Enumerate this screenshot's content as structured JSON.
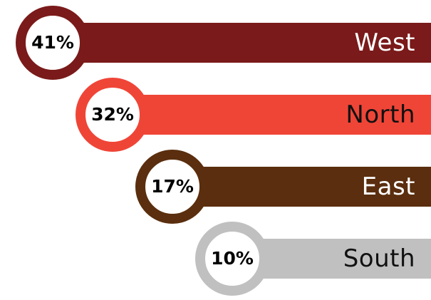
{
  "chart_data": {
    "type": "bar",
    "categories": [
      "West",
      "North",
      "East",
      "South"
    ],
    "values": [
      41,
      32,
      17,
      10
    ],
    "value_labels": [
      "41%",
      "32%",
      "17%",
      "10%"
    ],
    "colors": [
      "#7a1a1a",
      "#ef4537",
      "#5a2e0e",
      "#c0c0c0"
    ],
    "label_colors": [
      "#ffffff",
      "#111111",
      "#ffffff",
      "#111111"
    ],
    "title": "",
    "xlabel": "",
    "ylabel": "",
    "legend": "none",
    "grid": false
  }
}
